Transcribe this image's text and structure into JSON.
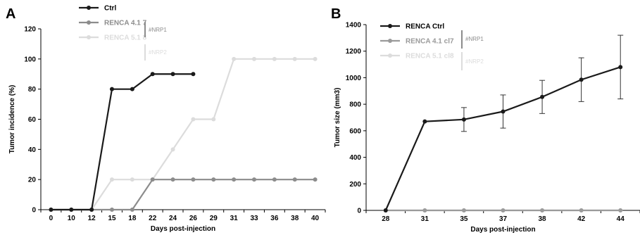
{
  "chart_data": [
    {
      "panel": "A",
      "type": "line",
      "xlabel": "Days post-injection",
      "ylabel": "Tumor incidence (%)",
      "categories": [
        "0",
        "10",
        "12",
        "15",
        "18",
        "22",
        "24",
        "26",
        "29",
        "31",
        "33",
        "36",
        "38",
        "40"
      ],
      "ylim": [
        0,
        120
      ],
      "yticks": [
        0,
        20,
        40,
        60,
        80,
        100,
        120
      ],
      "grid": false,
      "legend_position": "top-left",
      "series": [
        {
          "name": "Ctrl",
          "color": "#1a1a1a",
          "values": [
            0,
            0,
            0,
            80,
            80,
            90,
            90,
            90,
            null,
            null,
            null,
            null,
            null,
            null
          ]
        },
        {
          "name": "RENCA 4.1 7",
          "color": "#8c8c8c",
          "values": [
            0,
            0,
            0,
            0,
            0,
            20,
            20,
            20,
            20,
            20,
            20,
            20,
            20,
            20
          ]
        },
        {
          "name": "RENCA 5.1 8",
          "color": "#dcdcdc",
          "values": [
            0,
            0,
            0,
            20,
            20,
            20,
            40,
            60,
            60,
            100,
            100,
            100,
            100,
            100
          ]
        }
      ],
      "annotations": [
        {
          "text": "#NRP1",
          "series": "RENCA 4.1 7",
          "color": "#8c8c8c"
        },
        {
          "text": "#NRP2",
          "series": "RENCA 5.1 8",
          "color": "#dcdcdc"
        }
      ]
    },
    {
      "panel": "B",
      "type": "line",
      "xlabel": "Days post-injection",
      "ylabel": "Tumor size (mm3)",
      "categories": [
        "28",
        "31",
        "35",
        "37",
        "38",
        "42",
        "44"
      ],
      "ylim": [
        0,
        1400
      ],
      "yticks": [
        0,
        200,
        400,
        600,
        800,
        1000,
        1200,
        1400
      ],
      "grid": false,
      "legend_position": "top-left",
      "series": [
        {
          "name": "RENCA Ctrl",
          "color": "#1a1a1a",
          "values": [
            0,
            670,
            685,
            745,
            855,
            985,
            1080
          ],
          "errors": [
            0,
            0,
            90,
            125,
            125,
            165,
            240
          ]
        },
        {
          "name": "RENCA 4.1 cl7",
          "color": "#9a9a9a",
          "values": [
            0,
            0,
            0,
            0,
            0,
            0,
            0
          ]
        },
        {
          "name": "RENCA 5.1 cl8",
          "color": "#dcdcdc",
          "values": [
            0,
            0,
            0,
            0,
            0,
            0,
            0
          ]
        }
      ],
      "annotations": [
        {
          "text": "#NRP1",
          "series": "RENCA 4.1 cl7",
          "color": "#8c8c8c"
        },
        {
          "text": "#NRP2",
          "series": "RENCA 5.1 cl8",
          "color": "#dcdcdc"
        }
      ]
    }
  ]
}
